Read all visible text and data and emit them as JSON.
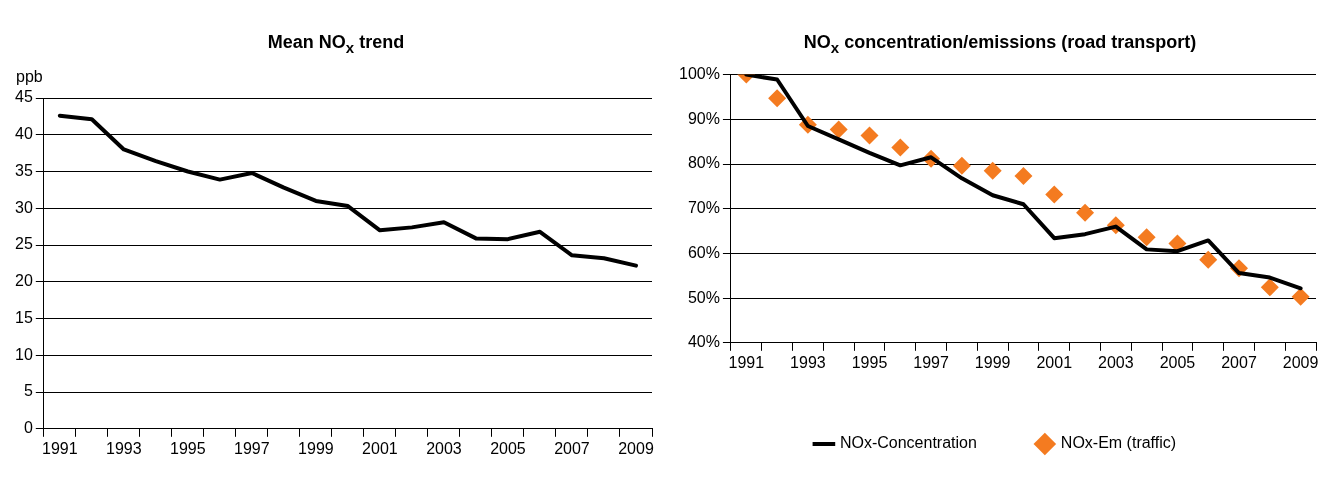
{
  "chart_data": [
    {
      "type": "line",
      "title": "Mean NO$_{x}$ trend",
      "ylabel": "ppb",
      "categories": [
        "1991",
        null,
        "1993",
        null,
        "1995",
        null,
        "1997",
        null,
        "1999",
        null,
        "2001",
        null,
        "2003",
        null,
        "2005",
        null,
        "2007",
        null,
        "2009"
      ],
      "series": [
        {
          "color": "#000000",
          "values": [
            42.6,
            42.1,
            38,
            36.4,
            35,
            33.9,
            34.8,
            32.8,
            31.0,
            30.3,
            27.0,
            27.4,
            28.1,
            25.9,
            25.8,
            26.8,
            23.6,
            23.2,
            22.2
          ]
        }
      ],
      "ylim": [
        0,
        45
      ],
      "yticks": [
        0,
        5,
        10,
        15,
        20,
        25,
        30,
        35,
        40,
        45
      ],
      "grid": "y",
      "legend": false,
      "marker": "none",
      "line_style": "solid"
    },
    {
      "type": "line",
      "title": "NO$_{x}$ concentration/emissions (road transport)",
      "categories": [
        "1991",
        null,
        "1993",
        null,
        "1995",
        null,
        "1997",
        null,
        "1999",
        null,
        "2001",
        null,
        "2003",
        null,
        "2005",
        null,
        "2007",
        null,
        "2009"
      ],
      "series": [
        {
          "name": "NOx-Concentration",
          "type": "line",
          "color": "#000000",
          "marker": "none",
          "line_style": "solid",
          "values": [
            100,
            98.9,
            88.5,
            85.5,
            82.5,
            79.7,
            81.5,
            76.8,
            73,
            71,
            63.4,
            64.3,
            66,
            60.9,
            60.5,
            62.9,
            55.6,
            54.6,
            52.2
          ]
        },
        {
          "name": "NOx-Em (traffic)",
          "type": "scatter",
          "color": "#f47b20",
          "marker": "diamond",
          "values": [
            100,
            94.7,
            88.8,
            87.7,
            86.4,
            83.7,
            81.2,
            79.6,
            78.5,
            77.3,
            73.2,
            69.1,
            66.3,
            63.6,
            62.2,
            58.6,
            56.7,
            52.4,
            50.3
          ]
        }
      ],
      "ylim": [
        40,
        100
      ],
      "yticks": [
        {
          "value": 40,
          "label": "40%"
        },
        {
          "value": 50,
          "label": "50%"
        },
        {
          "value": 60,
          "label": "60%"
        },
        {
          "value": 70,
          "label": "70%"
        },
        {
          "value": 80,
          "label": "80%"
        },
        {
          "value": 90,
          "label": "90%"
        },
        {
          "value": 100,
          "label": "100%"
        }
      ],
      "grid": "y",
      "legend": "bottom"
    }
  ]
}
